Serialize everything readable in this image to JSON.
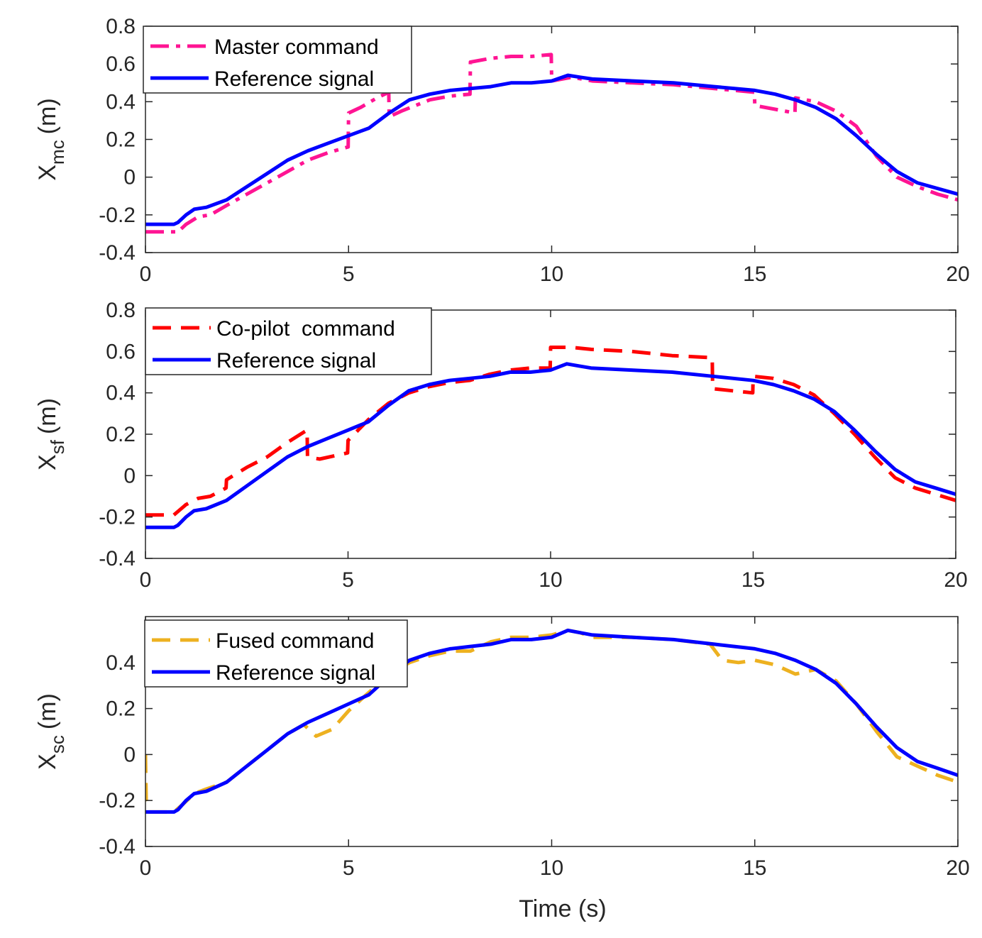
{
  "figure": {
    "xlabel": "Time (s)"
  },
  "chart_data": [
    {
      "type": "line",
      "ylabel_main": "X",
      "ylabel_sub": "mc",
      "ylabel_unit": "(m)",
      "xlim": [
        0,
        20
      ],
      "ylim": [
        -0.4,
        0.8
      ],
      "xticks": [
        0,
        5,
        10,
        15,
        20
      ],
      "yticks": [
        -0.4,
        -0.2,
        0,
        0.2,
        0.4,
        0.6,
        0.8
      ],
      "ytick_labels": [
        "-0.4",
        "-0.2",
        "0",
        "0.2",
        "0.4",
        "0.6",
        "0.8"
      ],
      "legend_position": "top-left",
      "series": [
        {
          "name": "Master command",
          "color": "#ff1493",
          "style": "dashdot",
          "x": [
            0,
            0.8,
            1.0,
            1.3,
            1.6,
            2.0,
            2.5,
            3.0,
            3.5,
            4.0,
            4.5,
            4.99,
            5.0,
            5.3,
            5.7,
            5.99,
            6.0,
            6.3,
            7.0,
            7.5,
            7.99,
            8.0,
            8.5,
            9.0,
            9.5,
            9.99,
            10.0,
            10.5,
            11.0,
            12.0,
            13.0,
            14.0,
            14.99,
            15.0,
            15.5,
            15.99,
            16.0,
            16.5,
            17.0,
            17.5,
            18.0,
            18.5,
            19.0,
            19.5,
            20.0
          ],
          "y": [
            -0.29,
            -0.29,
            -0.25,
            -0.21,
            -0.2,
            -0.15,
            -0.09,
            -0.03,
            0.03,
            0.09,
            0.13,
            0.16,
            0.34,
            0.37,
            0.42,
            0.45,
            0.32,
            0.35,
            0.41,
            0.43,
            0.44,
            0.61,
            0.63,
            0.64,
            0.64,
            0.65,
            0.51,
            0.53,
            0.51,
            0.5,
            0.49,
            0.47,
            0.45,
            0.38,
            0.36,
            0.34,
            0.42,
            0.4,
            0.35,
            0.27,
            0.11,
            0.0,
            -0.05,
            -0.09,
            -0.12
          ]
        },
        {
          "name": "Reference signal",
          "color": "#0000ff",
          "style": "solid",
          "x": [
            0,
            0.7,
            0.8,
            1.0,
            1.2,
            1.5,
            2.0,
            2.5,
            3.0,
            3.5,
            4.0,
            4.5,
            5.0,
            5.5,
            6.0,
            6.5,
            7.0,
            7.5,
            8.0,
            8.5,
            9.0,
            9.5,
            10.0,
            10.4,
            10.7,
            11.0,
            12.0,
            13.0,
            14.0,
            15.0,
            15.5,
            16.0,
            16.5,
            17.0,
            17.5,
            18.0,
            18.5,
            19.0,
            19.5,
            20.0
          ],
          "y": [
            -0.25,
            -0.25,
            -0.24,
            -0.2,
            -0.17,
            -0.16,
            -0.12,
            -0.05,
            0.02,
            0.09,
            0.14,
            0.18,
            0.22,
            0.26,
            0.34,
            0.41,
            0.44,
            0.46,
            0.47,
            0.48,
            0.5,
            0.5,
            0.51,
            0.54,
            0.53,
            0.52,
            0.51,
            0.5,
            0.48,
            0.46,
            0.44,
            0.41,
            0.37,
            0.31,
            0.22,
            0.12,
            0.03,
            -0.03,
            -0.06,
            -0.09
          ]
        }
      ]
    },
    {
      "type": "line",
      "ylabel_main": "X",
      "ylabel_sub": "sf",
      "ylabel_unit": "(m)",
      "xlim": [
        0,
        20
      ],
      "ylim": [
        -0.4,
        0.8
      ],
      "xticks": [
        0,
        5,
        10,
        15,
        20
      ],
      "yticks": [
        -0.4,
        -0.2,
        0,
        0.2,
        0.4,
        0.6,
        0.8
      ],
      "ytick_labels": [
        "-0.4",
        "-0.2",
        "0",
        "0.2",
        "0.4",
        "0.6",
        "0.8"
      ],
      "legend_position": "top-left",
      "series": [
        {
          "name": "Co-pilot  command",
          "color": "#ff0000",
          "style": "dashed",
          "x": [
            0,
            0.7,
            1.0,
            1.3,
            1.6,
            1.99,
            2.0,
            2.5,
            3.0,
            3.5,
            3.99,
            4.0,
            4.3,
            4.99,
            5.0,
            5.5,
            6.0,
            6.5,
            7.0,
            7.5,
            8.0,
            8.5,
            9.0,
            9.5,
            9.99,
            10.0,
            10.5,
            11.0,
            12.0,
            13.0,
            13.99,
            14.0,
            14.5,
            14.99,
            15.0,
            15.5,
            16.0,
            16.5,
            17.0,
            17.5,
            18.0,
            18.5,
            19.0,
            19.5,
            20.0
          ],
          "y": [
            -0.19,
            -0.19,
            -0.14,
            -0.11,
            -0.1,
            -0.06,
            -0.02,
            0.04,
            0.09,
            0.16,
            0.22,
            0.09,
            0.08,
            0.11,
            0.17,
            0.27,
            0.35,
            0.4,
            0.43,
            0.45,
            0.46,
            0.49,
            0.51,
            0.52,
            0.52,
            0.62,
            0.62,
            0.61,
            0.6,
            0.58,
            0.57,
            0.42,
            0.41,
            0.4,
            0.48,
            0.47,
            0.44,
            0.39,
            0.3,
            0.2,
            0.09,
            -0.01,
            -0.06,
            -0.09,
            -0.12
          ]
        },
        {
          "name": "Reference signal",
          "color": "#0000ff",
          "style": "solid",
          "x": [
            0,
            0.7,
            0.8,
            1.0,
            1.2,
            1.5,
            2.0,
            2.5,
            3.0,
            3.5,
            4.0,
            4.5,
            5.0,
            5.5,
            6.0,
            6.5,
            7.0,
            7.5,
            8.0,
            8.5,
            9.0,
            9.5,
            10.0,
            10.4,
            10.7,
            11.0,
            12.0,
            13.0,
            14.0,
            15.0,
            15.5,
            16.0,
            16.5,
            17.0,
            17.5,
            18.0,
            18.5,
            19.0,
            19.5,
            20.0
          ],
          "y": [
            -0.25,
            -0.25,
            -0.24,
            -0.2,
            -0.17,
            -0.16,
            -0.12,
            -0.05,
            0.02,
            0.09,
            0.14,
            0.18,
            0.22,
            0.26,
            0.34,
            0.41,
            0.44,
            0.46,
            0.47,
            0.48,
            0.5,
            0.5,
            0.51,
            0.54,
            0.53,
            0.52,
            0.51,
            0.5,
            0.48,
            0.46,
            0.44,
            0.41,
            0.37,
            0.31,
            0.22,
            0.12,
            0.03,
            -0.03,
            -0.06,
            -0.09
          ]
        }
      ]
    },
    {
      "type": "line",
      "ylabel_main": "X",
      "ylabel_sub": "sc",
      "ylabel_unit": "(m)",
      "xlim": [
        0,
        20
      ],
      "ylim": [
        -0.4,
        0.6
      ],
      "xticks": [
        0,
        5,
        10,
        15,
        20
      ],
      "yticks": [
        -0.4,
        -0.2,
        0,
        0.2,
        0.4
      ],
      "ytick_labels": [
        "-0.4",
        "-0.2",
        "0",
        "0.2",
        "0.4"
      ],
      "legend_position": "top-left",
      "series": [
        {
          "name": "Fused command",
          "color": "#edb120",
          "style": "dashed",
          "x": [
            0,
            0.02,
            0.1,
            0.7,
            0.9,
            1.2,
            1.5,
            2.0,
            2.5,
            3.0,
            3.5,
            3.9,
            4.2,
            4.6,
            5.0,
            5.5,
            6.0,
            6.5,
            7.0,
            7.5,
            8.0,
            8.5,
            9.0,
            9.5,
            10.0,
            10.4,
            10.7,
            11.0,
            12.0,
            13.0,
            13.9,
            14.2,
            14.6,
            15.0,
            15.5,
            16.0,
            16.5,
            17.0,
            17.5,
            18.0,
            18.5,
            19.0,
            19.5,
            20.0
          ],
          "y": [
            0.0,
            -0.2,
            -0.25,
            -0.25,
            -0.22,
            -0.17,
            -0.15,
            -0.12,
            -0.05,
            0.02,
            0.09,
            0.13,
            0.08,
            0.11,
            0.19,
            0.27,
            0.35,
            0.4,
            0.43,
            0.45,
            0.45,
            0.49,
            0.51,
            0.51,
            0.52,
            0.54,
            0.53,
            0.51,
            0.51,
            0.5,
            0.48,
            0.41,
            0.4,
            0.41,
            0.39,
            0.35,
            0.37,
            0.32,
            0.22,
            0.1,
            -0.01,
            -0.05,
            -0.09,
            -0.12
          ]
        },
        {
          "name": "Reference signal",
          "color": "#0000ff",
          "style": "solid",
          "x": [
            0,
            0.7,
            0.8,
            1.0,
            1.2,
            1.5,
            2.0,
            2.5,
            3.0,
            3.5,
            4.0,
            4.5,
            5.0,
            5.5,
            6.0,
            6.5,
            7.0,
            7.5,
            8.0,
            8.5,
            9.0,
            9.5,
            10.0,
            10.4,
            10.7,
            11.0,
            12.0,
            13.0,
            14.0,
            15.0,
            15.5,
            16.0,
            16.5,
            17.0,
            17.5,
            18.0,
            18.5,
            19.0,
            19.5,
            20.0
          ],
          "y": [
            -0.25,
            -0.25,
            -0.24,
            -0.2,
            -0.17,
            -0.16,
            -0.12,
            -0.05,
            0.02,
            0.09,
            0.14,
            0.18,
            0.22,
            0.26,
            0.34,
            0.41,
            0.44,
            0.46,
            0.47,
            0.48,
            0.5,
            0.5,
            0.51,
            0.54,
            0.53,
            0.52,
            0.51,
            0.5,
            0.48,
            0.46,
            0.44,
            0.41,
            0.37,
            0.31,
            0.22,
            0.12,
            0.03,
            -0.03,
            -0.06,
            -0.09
          ]
        }
      ]
    }
  ]
}
